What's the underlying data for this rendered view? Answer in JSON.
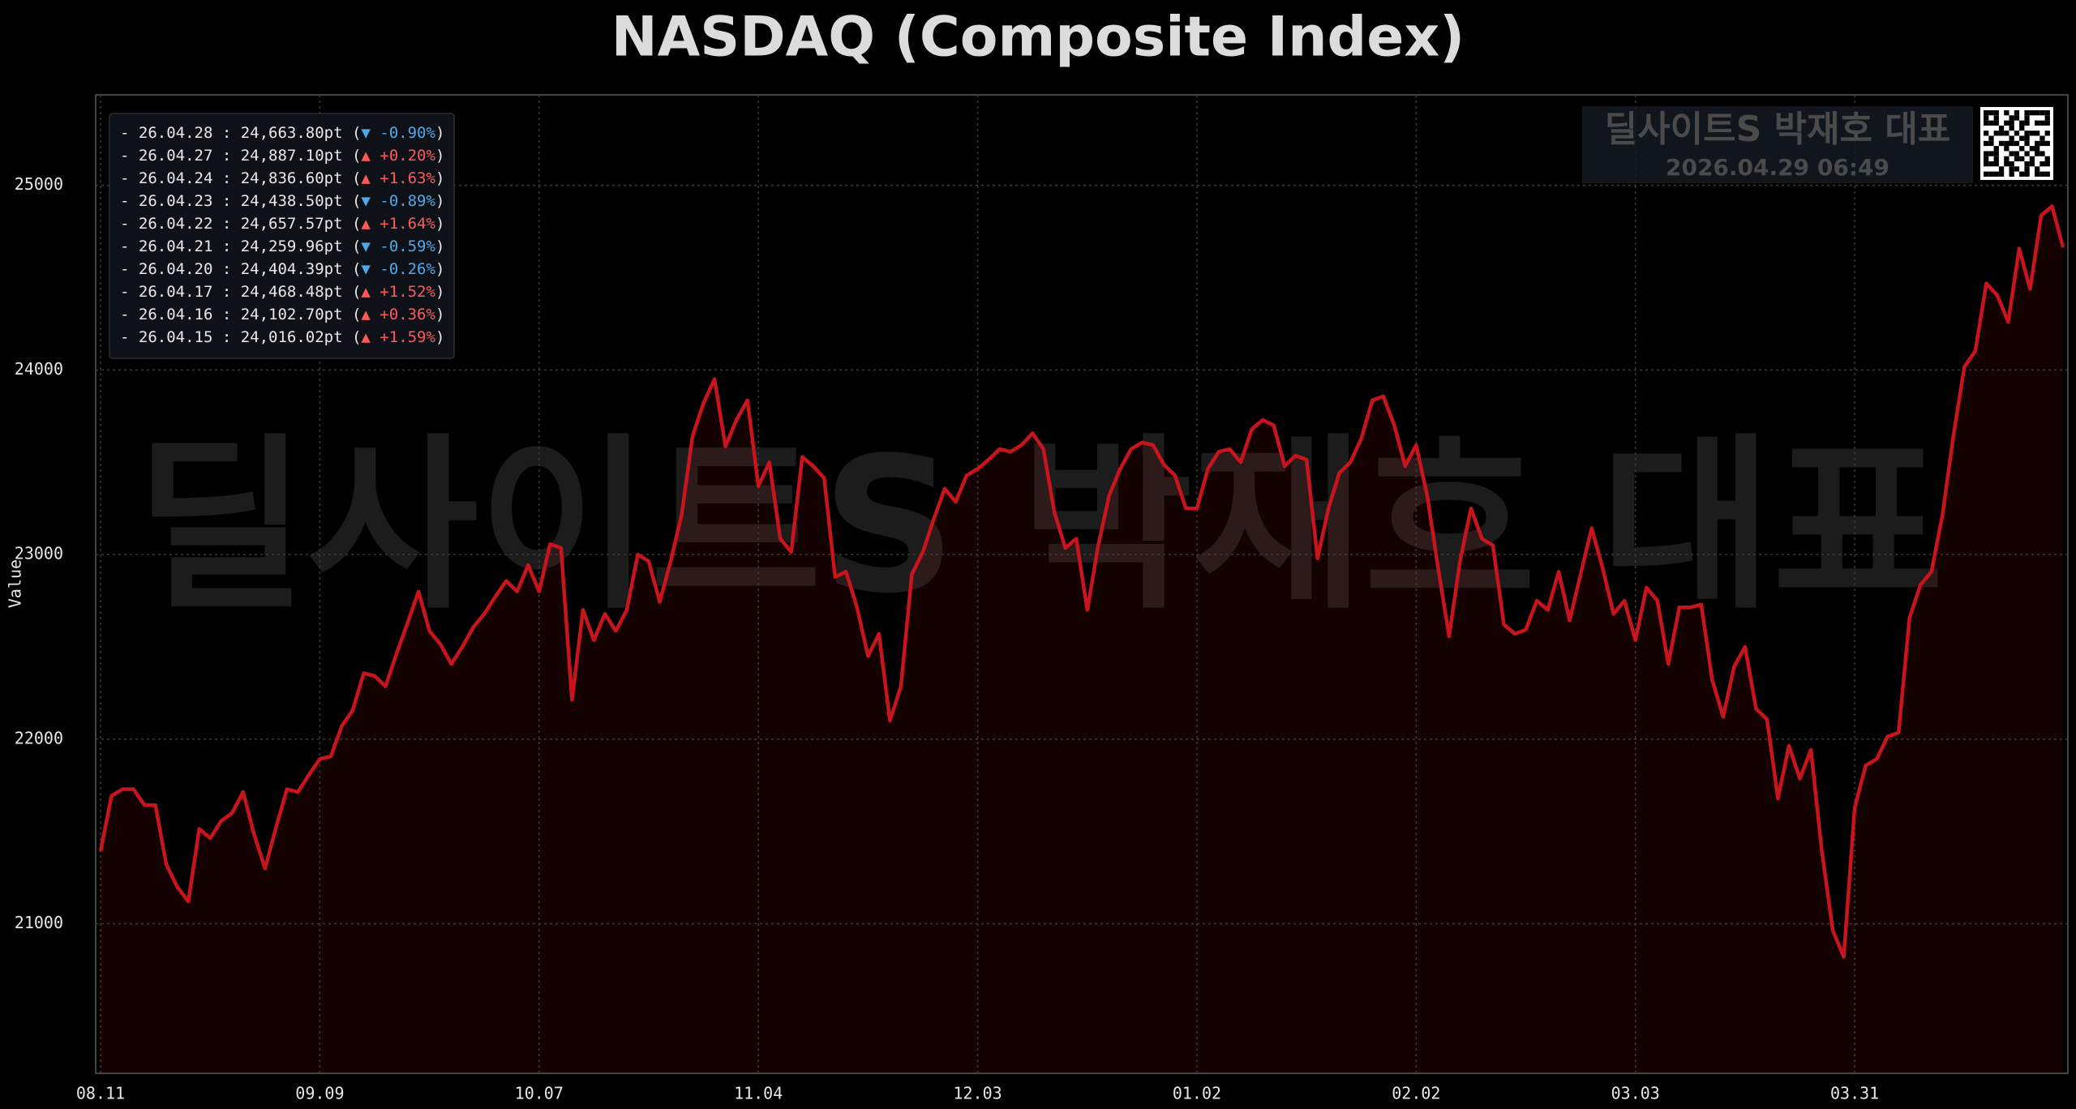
{
  "chart_data": {
    "type": "line",
    "title": "NASDAQ (Composite Index)",
    "ylabel": "Value",
    "watermark": "딜사이트S 박재호 대표",
    "timestamp": "2026.04.29 06:49",
    "ylim": [
      20190,
      25490
    ],
    "yticks": [
      21000,
      22000,
      23000,
      24000,
      25000
    ],
    "grid": true,
    "categories": [
      "08.11",
      null,
      null,
      null,
      null,
      null,
      null,
      null,
      null,
      null,
      null,
      null,
      null,
      null,
      null,
      null,
      null,
      null,
      null,
      null,
      "09.09",
      null,
      null,
      null,
      null,
      null,
      null,
      null,
      null,
      null,
      null,
      null,
      null,
      null,
      null,
      null,
      null,
      null,
      null,
      null,
      "10.07",
      null,
      null,
      null,
      null,
      null,
      null,
      null,
      null,
      null,
      null,
      null,
      null,
      null,
      null,
      null,
      null,
      null,
      null,
      null,
      "11.04",
      null,
      null,
      null,
      null,
      null,
      null,
      null,
      null,
      null,
      null,
      null,
      null,
      null,
      null,
      null,
      null,
      null,
      null,
      null,
      "12.03",
      null,
      null,
      null,
      null,
      null,
      null,
      null,
      null,
      null,
      null,
      null,
      null,
      null,
      null,
      null,
      null,
      null,
      null,
      null,
      "01.02",
      null,
      null,
      null,
      null,
      null,
      null,
      null,
      null,
      null,
      null,
      null,
      null,
      null,
      null,
      null,
      null,
      null,
      null,
      null,
      "02.02",
      null,
      null,
      null,
      null,
      null,
      null,
      null,
      null,
      null,
      null,
      null,
      null,
      null,
      null,
      null,
      null,
      null,
      null,
      null,
      "03.03",
      null,
      null,
      null,
      null,
      null,
      null,
      null,
      null,
      null,
      null,
      null,
      null,
      null,
      null,
      null,
      null,
      null,
      null,
      null,
      "03.31",
      null,
      null,
      null,
      null,
      null,
      null,
      null,
      null,
      null,
      null,
      null,
      null,
      null,
      null,
      null,
      null,
      null,
      null,
      null
    ],
    "series": [
      {
        "color": "#c8141c",
        "values": [
          21393,
          21693,
          21729,
          21729,
          21643,
          21643,
          21321,
          21200,
          21121,
          21514,
          21464,
          21557,
          21600,
          21714,
          21486,
          21300,
          21521,
          21729,
          21714,
          21807,
          21893,
          21907,
          22071,
          22157,
          22357,
          22343,
          22286,
          22464,
          22629,
          22800,
          22586,
          22514,
          22407,
          22500,
          22607,
          22679,
          22771,
          22857,
          22800,
          22943,
          22800,
          23057,
          23036,
          22214,
          22700,
          22536,
          22679,
          22586,
          22700,
          23000,
          22964,
          22743,
          22964,
          23214,
          23643,
          23821,
          23950,
          23586,
          23729,
          23836,
          23371,
          23500,
          23086,
          23014,
          23529,
          23479,
          23414,
          22879,
          22907,
          22714,
          22450,
          22571,
          22100,
          22286,
          22893,
          23014,
          23193,
          23357,
          23286,
          23429,
          23464,
          23514,
          23571,
          23557,
          23593,
          23657,
          23571,
          23229,
          23036,
          23086,
          22700,
          23050,
          23321,
          23464,
          23571,
          23607,
          23593,
          23486,
          23429,
          23250,
          23250,
          23464,
          23557,
          23571,
          23500,
          23679,
          23729,
          23700,
          23479,
          23536,
          23514,
          22979,
          23250,
          23443,
          23500,
          23629,
          23836,
          23857,
          23700,
          23479,
          23593,
          23321,
          22929,
          22557,
          22964,
          23250,
          23086,
          23050,
          22621,
          22571,
          22593,
          22750,
          22700,
          22907,
          22643,
          22893,
          23143,
          22929,
          22679,
          22750,
          22536,
          22821,
          22750,
          22407,
          22714,
          22714,
          22729,
          22321,
          22121,
          22393,
          22500,
          22164,
          22107,
          21679,
          21964,
          21786,
          21943,
          21393,
          20964,
          20821,
          21629,
          21857,
          21893,
          22014,
          22036,
          22657,
          22836,
          22907,
          23214,
          23643,
          24016.02,
          24102.7,
          24468.48,
          24404.39,
          24259.96,
          24657.57,
          24438.5,
          24836.6,
          24887.1,
          24663.8
        ]
      }
    ],
    "recent": [
      {
        "text": "- 26.04.28 : 24,663.80pt (",
        "change": "▼ -0.90%",
        "close": ")",
        "color": "#4fa8e8"
      },
      {
        "text": "- 26.04.27 : 24,887.10pt (",
        "change": "▲ +0.20%",
        "close": ")",
        "color": "#ff5a5a"
      },
      {
        "text": "- 26.04.24 : 24,836.60pt (",
        "change": "▲ +1.63%",
        "close": ")",
        "color": "#ff5a5a"
      },
      {
        "text": "- 26.04.23 : 24,438.50pt (",
        "change": "▼ -0.89%",
        "close": ")",
        "color": "#4fa8e8"
      },
      {
        "text": "- 26.04.22 : 24,657.57pt (",
        "change": "▲ +1.64%",
        "close": ")",
        "color": "#ff5a5a"
      },
      {
        "text": "- 26.04.21 : 24,259.96pt (",
        "change": "▼ -0.59%",
        "close": ")",
        "color": "#4fa8e8"
      },
      {
        "text": "- 26.04.20 : 24,404.39pt (",
        "change": "▼ -0.26%",
        "close": ")",
        "color": "#4fa8e8"
      },
      {
        "text": "- 26.04.17 : 24,468.48pt (",
        "change": "▲ +1.52%",
        "close": ")",
        "color": "#ff5a5a"
      },
      {
        "text": "- 26.04.16 : 24,102.70pt (",
        "change": "▲ +0.36%",
        "close": ")",
        "color": "#ff5a5a"
      },
      {
        "text": "- 26.04.15 : 24,016.02pt (",
        "change": "▲ +1.59%",
        "close": ")",
        "color": "#ff5a5a"
      }
    ]
  }
}
